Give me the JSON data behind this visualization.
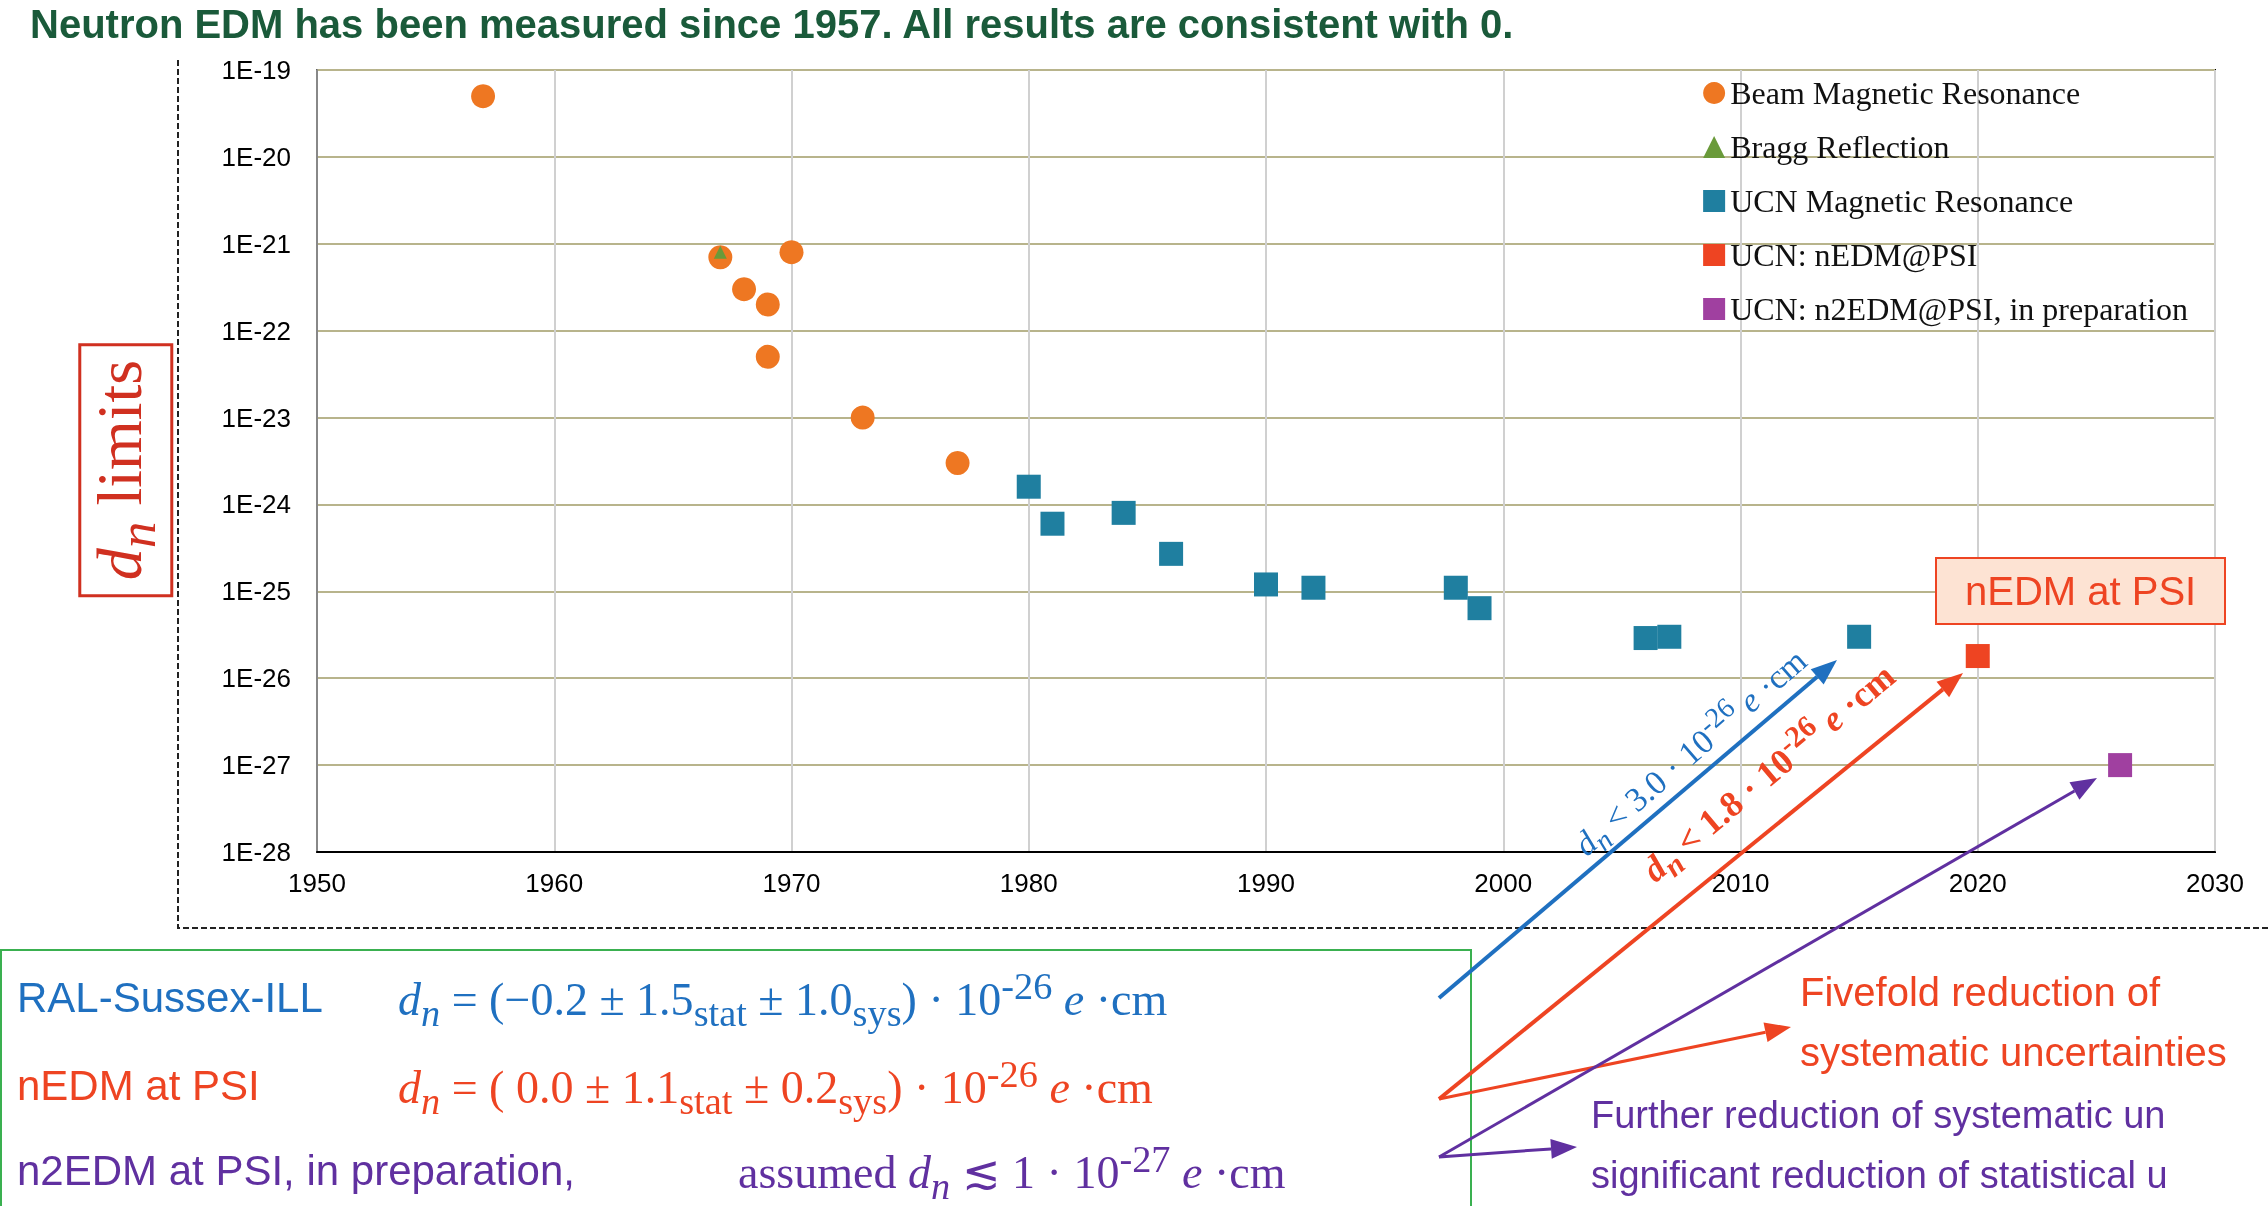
{
  "chart_data": {
    "type": "scatter",
    "title": "Neutron EDM has been measured since 1957. All results are consistent with 0.",
    "ylabel": "d$_{n}$ limits",
    "log": true,
    "grid": true,
    "legend": "top right",
    "xlim": [
      1950,
      2030
    ],
    "xticks": [
      1950,
      1960,
      1970,
      1980,
      1990,
      2000,
      2010,
      2020,
      2030
    ],
    "ylim": [
      1e-28,
      1e-19
    ],
    "yticks": [
      {
        "value": 1e-28,
        "label": "1E-28"
      },
      {
        "value": 1e-27,
        "label": "1E-27"
      },
      {
        "value": 1e-26,
        "label": "1E-26"
      },
      {
        "value": 1e-25,
        "label": "1E-25"
      },
      {
        "value": 1e-24,
        "label": "1E-24"
      },
      {
        "value": 1e-23,
        "label": "1E-23"
      },
      {
        "value": 1e-22,
        "label": "1E-22"
      },
      {
        "value": 1e-21,
        "label": "1E-21"
      },
      {
        "value": 1e-20,
        "label": "1E-20"
      },
      {
        "value": 1e-19,
        "label": "1E-19"
      }
    ],
    "series": [
      {
        "name": "Beam Magnetic Resonance",
        "color": "#ee7722",
        "marker": "circle",
        "x": [
          1957,
          1967,
          1968,
          1969,
          1969,
          1970,
          1973,
          1977
        ],
        "values": [
          5e-20,
          7e-22,
          3e-22,
          2e-22,
          5e-23,
          8e-22,
          1e-23,
          3e-24
        ]
      },
      {
        "name": "Bragg Reflection",
        "color": "#6a9a3a",
        "marker": "triangle",
        "x": [
          1967
        ],
        "values": [
          8e-22
        ]
      },
      {
        "name": "UCN Magnetic Resonance",
        "color": "#1f7fa0",
        "marker": "square",
        "x": [
          1980,
          1981,
          1984,
          1986,
          1990,
          1992,
          1998,
          1999,
          2006,
          2007,
          2015
        ],
        "values": [
          1.6e-24,
          6e-25,
          8e-25,
          2.7e-25,
          1.2e-25,
          1.1e-25,
          1.1e-25,
          6.4e-26,
          2.9e-26,
          3e-26,
          3e-26
        ]
      },
      {
        "name": "UCN: nEDM@PSI",
        "color": "#ee4422",
        "marker": "square",
        "x": [
          2020
        ],
        "values": [
          1.8e-26
        ]
      },
      {
        "name": "UCN: n2EDM@PSI, in preparation",
        "color": "#a040a0",
        "marker": "square",
        "x": [
          2026
        ],
        "values": [
          1e-27
        ]
      }
    ],
    "annotations": [
      "d$_{n}$ < 3.0 · 10$^{-26}$ e ·cm",
      "d$_{n}$ < 1.8 · 10$^{-26}$ e ·cm",
      "nEDM at PSI",
      "RAL-Sussex-ILL",
      "d$_{n}$ = (−0.2 ± 1.5$_{stat}$ ± 1.0$_{sys}$) · 10$^{-26}$ e ·cm",
      "nEDM at PSI",
      "d$_{n}$ = (  0.0 ± 1.1$_{stat}$ ± 0.2$_{sys}$) · 10$^{-26}$ e ·cm",
      "n2EDM at PSI, in preparation,",
      "assumed d$_{n}$ ≲ 1 · 10$^{-27}$ e ·cm",
      "Fivefold reduction of",
      "systematic uncertainties",
      "Further reduction of systematic un",
      "significant reduction of statistical u"
    ]
  }
}
